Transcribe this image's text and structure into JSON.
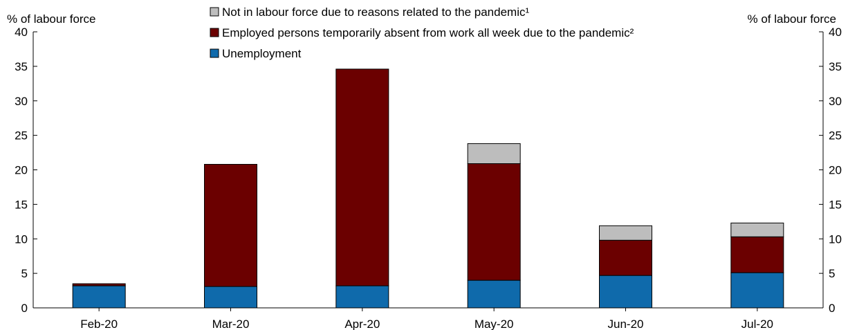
{
  "chart_data": {
    "type": "bar",
    "stacked": true,
    "y_unit_left": "% of labour force",
    "y_unit_right": "% of labour force",
    "ylim": [
      0,
      40
    ],
    "yticks": [
      0,
      5,
      10,
      15,
      20,
      25,
      30,
      35,
      40
    ],
    "grid": false,
    "legend_position": "top-center",
    "categories": [
      "Feb-20",
      "Mar-20",
      "Apr-20",
      "May-20",
      "Jun-20",
      "Jul-20"
    ],
    "series": [
      {
        "name": "Unemployment",
        "color": "#0f6aab",
        "values": [
          3.2,
          3.1,
          3.2,
          4.0,
          4.7,
          5.1
        ]
      },
      {
        "name": "Employed persons temporarily absent from work all week due to the pandemic²",
        "color": "#6b0000",
        "values": [
          0.3,
          17.7,
          31.4,
          16.9,
          5.1,
          5.2
        ]
      },
      {
        "name": "Not in labour force due to reasons related to the pandemic¹",
        "color": "#bdbdbd",
        "values": [
          0,
          0,
          0,
          2.9,
          2.1,
          2.0
        ]
      }
    ],
    "legend_order": [
      2,
      1,
      0
    ]
  }
}
